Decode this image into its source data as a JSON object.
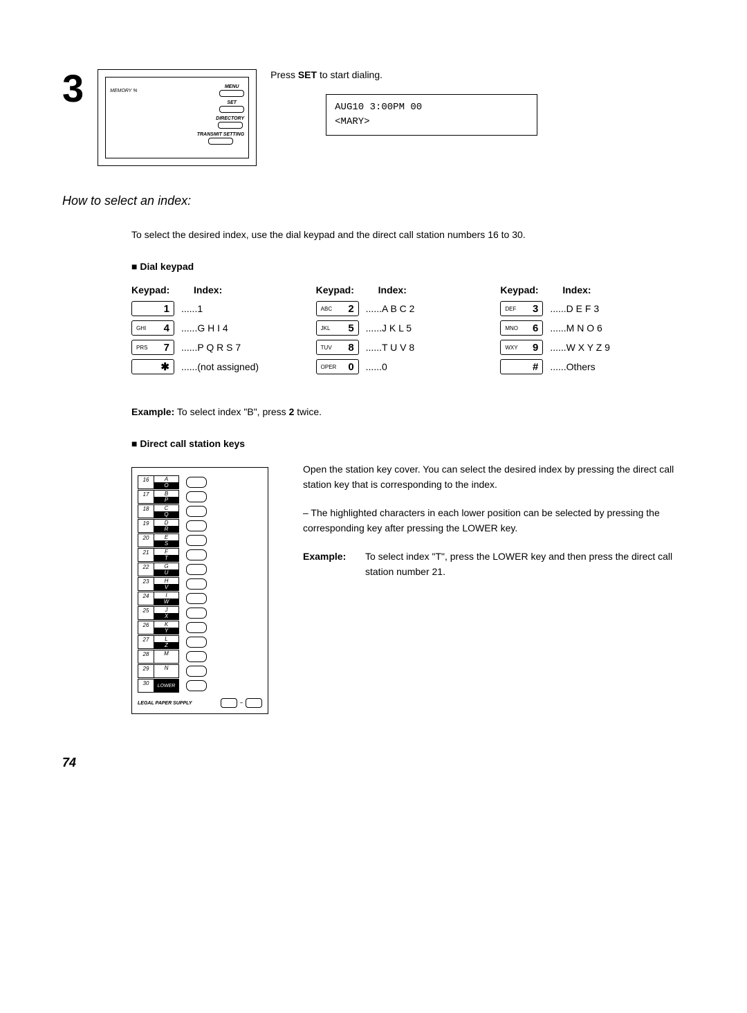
{
  "step_number": "3",
  "panel": {
    "memory_label": "MEMORY %",
    "menu": "MENU",
    "set": "SET",
    "directory": "DIRECTORY",
    "transmit": "TRANSMIT SETTING"
  },
  "press_line_before": "Press ",
  "press_line_bold": "SET",
  "press_line_after": " to start dialing.",
  "lcd": {
    "line1": "AUG10  3:00PM    00",
    "line2": "<MARY>"
  },
  "section_heading": "How to select an index:",
  "intro_text": "To select the desired index, use the dial keypad and the direct call station numbers 16 to 30.",
  "dial_keypad_heading": "Dial keypad",
  "kp_header_keypad": "Keypad:",
  "kp_header_index": "Index:",
  "keypad": [
    [
      {
        "small": "",
        "big": "1",
        "index": "......1"
      },
      {
        "small": "ABC",
        "big": "2",
        "index": "......A B C 2"
      },
      {
        "small": "DEF",
        "big": "3",
        "index": "......D E F 3"
      }
    ],
    [
      {
        "small": "GHI",
        "big": "4",
        "index": "......G H I 4"
      },
      {
        "small": "JKL",
        "big": "5",
        "index": "......J K L 5"
      },
      {
        "small": "MNO",
        "big": "6",
        "index": "......M N O 6"
      }
    ],
    [
      {
        "small": "PRS",
        "big": "7",
        "index": "......P Q R S 7"
      },
      {
        "small": "TUV",
        "big": "8",
        "index": "......T U V 8"
      },
      {
        "small": "WXY",
        "big": "9",
        "index": "......W X Y Z 9"
      }
    ],
    [
      {
        "small": "",
        "big": "✱",
        "index": "......(not assigned)"
      },
      {
        "small": "OPER",
        "big": "0",
        "index": "......0"
      },
      {
        "small": "",
        "big": "#",
        "index": "......Others"
      }
    ]
  ],
  "example_line_bold": "Example:",
  "example_line_rest_1": " To select index \"B\", press ",
  "example_line_bold2": "2",
  "example_line_rest_2": " twice.",
  "direct_keys_heading": "Direct call station keys",
  "stations": [
    {
      "num": "16",
      "top": "A",
      "bot": "O"
    },
    {
      "num": "17",
      "top": "B",
      "bot": "P"
    },
    {
      "num": "18",
      "top": "C",
      "bot": "Q"
    },
    {
      "num": "19",
      "top": "D",
      "bot": "R"
    },
    {
      "num": "20",
      "top": "E",
      "bot": "S"
    },
    {
      "num": "21",
      "top": "F",
      "bot": "T"
    },
    {
      "num": "22",
      "top": "G",
      "bot": "U"
    },
    {
      "num": "23",
      "top": "H",
      "bot": "V"
    },
    {
      "num": "24",
      "top": "I",
      "bot": "W"
    },
    {
      "num": "25",
      "top": "J",
      "bot": "X"
    },
    {
      "num": "26",
      "top": "K",
      "bot": "Y"
    },
    {
      "num": "27",
      "top": "L",
      "bot": "Z"
    },
    {
      "num": "28",
      "top": "M",
      "bot": ""
    },
    {
      "num": "29",
      "top": "N",
      "bot": ""
    }
  ],
  "station_last": {
    "num": "30",
    "bot": "LOWER"
  },
  "legal_label": "LEGAL PAPER SUPPLY",
  "direct_text_1": "Open the station key cover. You can select the desired index by pressing the direct call station key that is corresponding to the index.",
  "direct_text_2": "– The highlighted characters in each lower position can be selected by pressing the corresponding key after pressing the LOWER key.",
  "direct_example_label": "Example:",
  "direct_example_text": "To select index \"T\", press the LOWER key and then press the direct call station number 21.",
  "page_number": "74"
}
